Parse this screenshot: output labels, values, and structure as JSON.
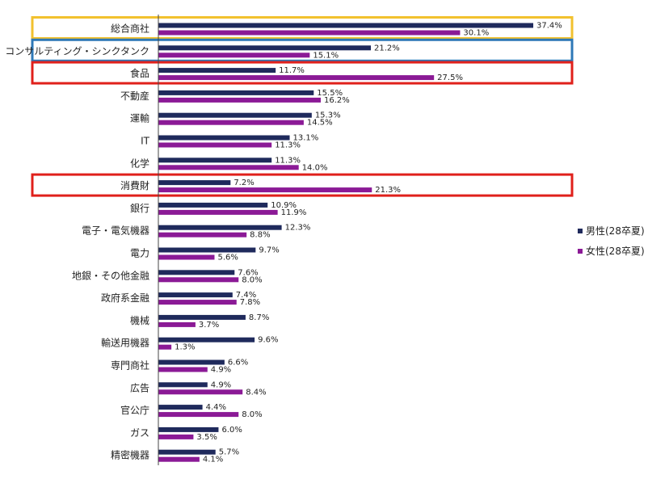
{
  "chart_data": {
    "type": "bar",
    "orientation": "horizontal",
    "categories": [
      "総合商社",
      "コンサルティング・シンクタンク",
      "食品",
      "不動産",
      "運輸",
      "IT",
      "化学",
      "消費財",
      "銀行",
      "電子・電気機器",
      "電力",
      "地銀・その他金融",
      "政府系金融",
      "機械",
      "輸送用機器",
      "専門商社",
      "広告",
      "官公庁",
      "ガス",
      "精密機器"
    ],
    "series": [
      {
        "name": "男性(28卒夏)",
        "color": "#1f2a5c",
        "values": [
          37.4,
          21.2,
          11.7,
          15.5,
          15.3,
          13.1,
          11.3,
          7.2,
          10.9,
          12.3,
          9.7,
          7.6,
          7.4,
          8.7,
          9.6,
          6.6,
          4.9,
          4.4,
          6.0,
          5.7
        ],
        "labels": [
          "37.4%",
          "21.2%",
          "11.7%",
          "15.5%",
          "15.3%",
          "13.1%",
          "11.3%",
          "7.2%",
          "10.9%",
          "12.3%",
          "9.7%",
          "7.6%",
          "7.4%",
          "8.7%",
          "9.6%",
          "6.6%",
          "4.9%",
          "4.4%",
          "6.0%",
          "5.7%"
        ]
      },
      {
        "name": "女性(28卒夏)",
        "color": "#8b1a96",
        "values": [
          30.1,
          15.1,
          27.5,
          16.2,
          14.5,
          11.3,
          14.0,
          21.3,
          11.9,
          8.8,
          5.6,
          8.0,
          7.8,
          3.7,
          1.3,
          4.9,
          8.4,
          8.0,
          3.5,
          4.1
        ],
        "labels": [
          "30.1%",
          "15.1%",
          "27.5%",
          "16.2%",
          "14.5%",
          "11.3%",
          "14.0%",
          "21.3%",
          "11.9%",
          "8.8%",
          "5.6%",
          "8.0%",
          "7.8%",
          "3.7%",
          "1.3%",
          "4.9%",
          "8.4%",
          "8.0%",
          "3.5%",
          "4.1%"
        ]
      }
    ],
    "xlim": [
      0,
      40
    ],
    "grid": false,
    "legend_position": "right",
    "highlights": [
      {
        "category": "総合商社",
        "color": "#f2c12e"
      },
      {
        "category": "コンサルティング・シンクタンク",
        "color": "#2e78b7"
      },
      {
        "category": "食品",
        "color": "#e0201b"
      },
      {
        "category": "消費財",
        "color": "#e0201b"
      }
    ]
  }
}
